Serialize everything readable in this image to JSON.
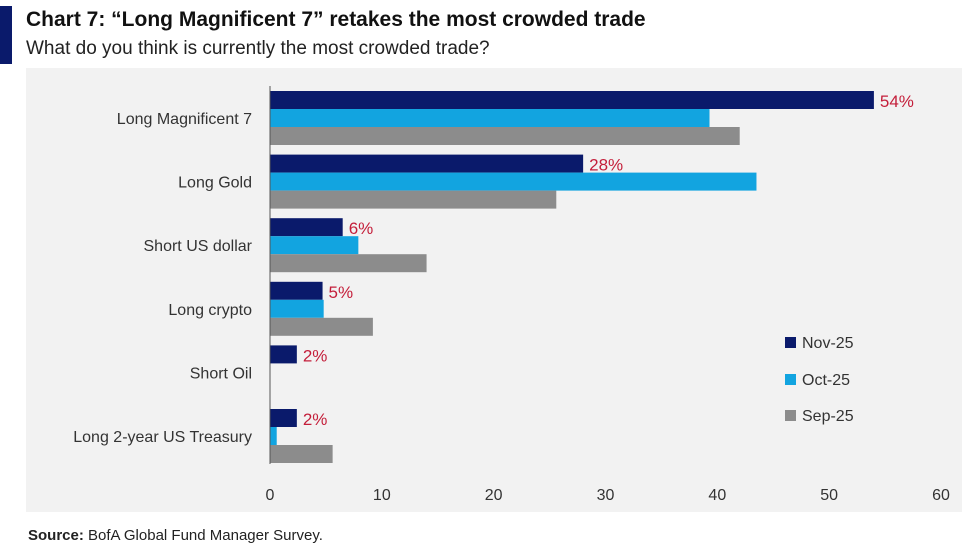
{
  "title": "Chart 7: “Long Magnificent 7” retakes the most crowded trade",
  "subtitle": "What do you think is currently the most crowded trade?",
  "source": {
    "label": "Source:",
    "text": "BofA Global Fund Manager Survey."
  },
  "colors": {
    "nov": "#0a1a6b",
    "oct": "#12a4e0",
    "sep": "#8c8c8c",
    "data_label": "#c41e3a",
    "accent": "#0a1a6b"
  },
  "chart_data": {
    "type": "bar",
    "orientation": "horizontal",
    "title": "Chart 7: “Long Magnificent 7” retakes the most crowded trade",
    "subtitle": "What do you think is currently the most crowded trade?",
    "categories": [
      "Long Magnificent 7",
      "Long Gold",
      "Short US dollar",
      "Long crypto",
      "Short Oil",
      "Long 2-year US Treasury"
    ],
    "series": [
      {
        "name": "Nov-25",
        "values": [
          54,
          28,
          6.5,
          4.7,
          2.4,
          2.4
        ]
      },
      {
        "name": "Oct-25",
        "values": [
          39.3,
          43.5,
          7.9,
          4.8,
          0,
          0.6
        ]
      },
      {
        "name": "Sep-25",
        "values": [
          42,
          25.6,
          14,
          9.2,
          0,
          5.6
        ]
      }
    ],
    "data_labels": [
      "54%",
      "28%",
      "6%",
      "5%",
      "2%",
      "2%"
    ],
    "xlim": [
      0,
      60
    ],
    "xticks": [
      0,
      10,
      20,
      30,
      40,
      50,
      60
    ],
    "xlabel": "",
    "ylabel": "",
    "legend_position": "right",
    "grid": false
  }
}
